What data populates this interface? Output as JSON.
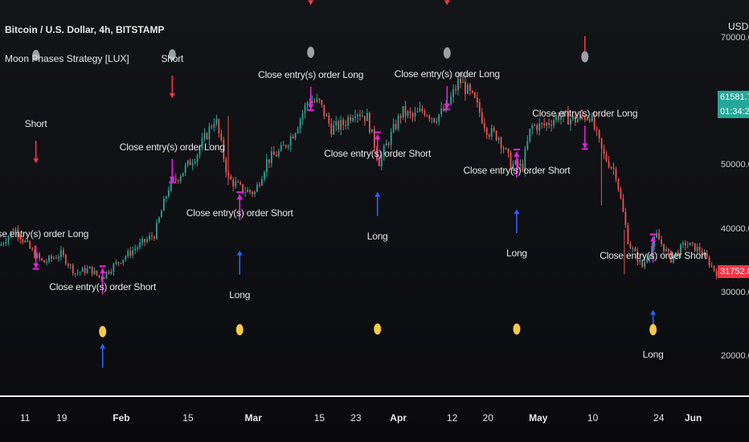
{
  "chart_title": "Bitcoin / U.S. Dollar, 4h, BITSTAMP",
  "indicator_name": "Moon Phases Strategy [LUX]",
  "axis_unit": "USD",
  "colors": {
    "up": "#26a69a",
    "down": "#ef5350",
    "close_marker": "#e91ee9",
    "short_arrow": "#f23645",
    "long_arrow": "#2962ff",
    "full_moon": "#f7c948",
    "new_moon": "#9aa0a6",
    "last_price_bg": "#26a69a",
    "open_price_bg": "#f23645"
  },
  "price_badges": {
    "last": "61581.70",
    "countdown": "01:34:29",
    "current": "31752.08"
  },
  "chart_data": {
    "type": "candlestick",
    "title": "Bitcoin / U.S. Dollar, 4h, BITSTAMP",
    "yunit": "USD",
    "y_ticks": [
      20000,
      30000,
      40000,
      50000,
      60000,
      70000
    ],
    "y_tick_labels": [
      "20000.00",
      "30000.00",
      "40000.00",
      "50000.00",
      "60000.00",
      "70000.00"
    ],
    "ylim": [
      14000,
      76000
    ],
    "x_ticks": [
      {
        "label": "11",
        "bold": false,
        "pos": 0.035
      },
      {
        "label": "19",
        "bold": false,
        "pos": 0.086
      },
      {
        "label": "Feb",
        "bold": true,
        "pos": 0.169
      },
      {
        "label": "15",
        "bold": false,
        "pos": 0.262
      },
      {
        "label": "Mar",
        "bold": true,
        "pos": 0.353
      },
      {
        "label": "15",
        "bold": false,
        "pos": 0.445
      },
      {
        "label": "23",
        "bold": false,
        "pos": 0.496
      },
      {
        "label": "Apr",
        "bold": true,
        "pos": 0.555
      },
      {
        "label": "12",
        "bold": false,
        "pos": 0.63
      },
      {
        "label": "20",
        "bold": false,
        "pos": 0.68
      },
      {
        "label": "May",
        "bold": true,
        "pos": 0.75
      },
      {
        "label": "10",
        "bold": false,
        "pos": 0.826
      },
      {
        "label": "24",
        "bold": false,
        "pos": 0.918
      },
      {
        "label": "Jun",
        "bold": true,
        "pos": 0.966
      }
    ],
    "price_path": [
      [
        0.0,
        37500
      ],
      [
        0.02,
        40200
      ],
      [
        0.045,
        36500
      ],
      [
        0.06,
        34800
      ],
      [
        0.085,
        36200
      ],
      [
        0.105,
        33200
      ],
      [
        0.125,
        33800
      ],
      [
        0.14,
        32400
      ],
      [
        0.16,
        34500
      ],
      [
        0.19,
        37200
      ],
      [
        0.215,
        39200
      ],
      [
        0.235,
        46600
      ],
      [
        0.255,
        49200
      ],
      [
        0.275,
        52000
      ],
      [
        0.3,
        57600
      ],
      [
        0.318,
        48000
      ],
      [
        0.338,
        46200
      ],
      [
        0.355,
        45800
      ],
      [
        0.372,
        50800
      ],
      [
        0.392,
        52400
      ],
      [
        0.41,
        55400
      ],
      [
        0.43,
        60400
      ],
      [
        0.445,
        59800
      ],
      [
        0.462,
        55800
      ],
      [
        0.478,
        56500
      ],
      [
        0.495,
        58800
      ],
      [
        0.512,
        57500
      ],
      [
        0.528,
        50600
      ],
      [
        0.545,
        54800
      ],
      [
        0.56,
        58500
      ],
      [
        0.575,
        57600
      ],
      [
        0.59,
        58800
      ],
      [
        0.605,
        57500
      ],
      [
        0.622,
        58900
      ],
      [
        0.64,
        63500
      ],
      [
        0.662,
        60000
      ],
      [
        0.68,
        55400
      ],
      [
        0.695,
        54600
      ],
      [
        0.712,
        50200
      ],
      [
        0.728,
        49800
      ],
      [
        0.74,
        56200
      ],
      [
        0.758,
        56300
      ],
      [
        0.778,
        57900
      ],
      [
        0.8,
        57200
      ],
      [
        0.822,
        58000
      ],
      [
        0.84,
        51800
      ],
      [
        0.858,
        49000
      ],
      [
        0.876,
        37800
      ],
      [
        0.895,
        34200
      ],
      [
        0.915,
        39000
      ],
      [
        0.935,
        35400
      ],
      [
        0.955,
        37800
      ],
      [
        0.975,
        36800
      ],
      [
        1.0,
        33000
      ]
    ],
    "signals": [
      {
        "type": "short",
        "text": "Short",
        "pos": 0.05,
        "price": 56200
      },
      {
        "type": "close",
        "text": "Close entry(s) order Long",
        "pos": 0.05,
        "price": 39000
      },
      {
        "type": "close",
        "text": "Close entry(s) order Short",
        "pos": 0.143,
        "price": 30600
      },
      {
        "type": "long",
        "text": "",
        "pos": 0.143,
        "price": 14800
      },
      {
        "type": "short",
        "text": "Short",
        "pos": 0.24,
        "price": 66400
      },
      {
        "type": "close",
        "text": "Close entry(s) order Long",
        "pos": 0.24,
        "price": 52600
      },
      {
        "type": "close",
        "text": "Close entry(s) order Short",
        "pos": 0.334,
        "price": 42200
      },
      {
        "type": "long",
        "text": "Long",
        "pos": 0.334,
        "price": 29400
      },
      {
        "type": "short",
        "text": "",
        "pos": 0.433,
        "price": 81000
      },
      {
        "type": "close",
        "text": "Close entry(s) order Long",
        "pos": 0.433,
        "price": 63900
      },
      {
        "type": "close",
        "text": "Close entry(s) order Short",
        "pos": 0.526,
        "price": 51600
      },
      {
        "type": "long",
        "text": "Long",
        "pos": 0.526,
        "price": 38600
      },
      {
        "type": "short",
        "text": "",
        "pos": 0.623,
        "price": 81000
      },
      {
        "type": "close",
        "text": "Close entry(s) order Long",
        "pos": 0.623,
        "price": 64000
      },
      {
        "type": "close",
        "text": "Close entry(s) order Short",
        "pos": 0.72,
        "price": 48900
      },
      {
        "type": "long",
        "text": "Long",
        "pos": 0.72,
        "price": 35900
      },
      {
        "type": "short",
        "text": "",
        "pos": 0.815,
        "price": 72600
      },
      {
        "type": "close",
        "text": "Close entry(s) order Long",
        "pos": 0.815,
        "price": 57800
      },
      {
        "type": "close",
        "text": "Close entry(s) order Short",
        "pos": 0.91,
        "price": 35600
      },
      {
        "type": "long",
        "text": "Long",
        "pos": 0.91,
        "price": 20100
      }
    ],
    "moon_markers": [
      {
        "type": "new",
        "pos": 0.05,
        "price": 67300
      },
      {
        "type": "full",
        "pos": 0.143,
        "price": 24000
      },
      {
        "type": "new",
        "pos": 0.24,
        "price": 67400
      },
      {
        "type": "full",
        "pos": 0.334,
        "price": 24300
      },
      {
        "type": "new",
        "pos": 0.433,
        "price": 67800
      },
      {
        "type": "full",
        "pos": 0.526,
        "price": 24400
      },
      {
        "type": "new",
        "pos": 0.623,
        "price": 67700
      },
      {
        "type": "full",
        "pos": 0.72,
        "price": 24400
      },
      {
        "type": "new",
        "pos": 0.815,
        "price": 67100
      },
      {
        "type": "full",
        "pos": 0.91,
        "price": 24300
      }
    ]
  }
}
